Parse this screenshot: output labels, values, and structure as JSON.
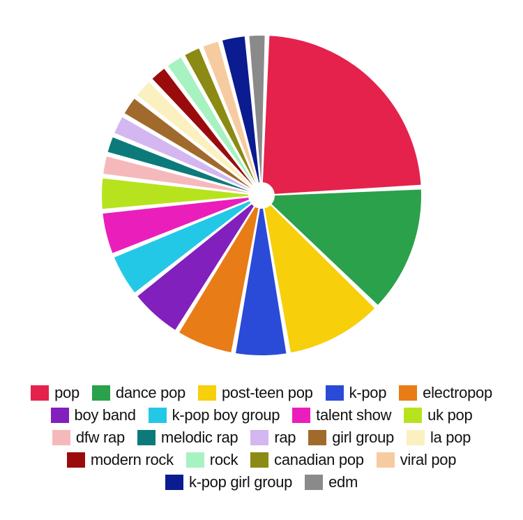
{
  "chart": {
    "type": "pie",
    "background_color": "#ffffff",
    "radius_outer": 230,
    "radius_inner": 18,
    "gap_deg": 1.2,
    "start_angle_deg": -88,
    "slices": [
      {
        "label": "pop",
        "value": 23.5,
        "color": "#e4224b"
      },
      {
        "label": "dance pop",
        "value": 13.0,
        "color": "#2aa14a"
      },
      {
        "label": "post-teen pop",
        "value": 10.0,
        "color": "#f7cf0a"
      },
      {
        "label": "k-pop",
        "value": 5.5,
        "color": "#2a4bd7"
      },
      {
        "label": "electropop",
        "value": 6.0,
        "color": "#e87c17"
      },
      {
        "label": "boy band",
        "value": 5.5,
        "color": "#8120bd"
      },
      {
        "label": "k-pop boy group",
        "value": 4.5,
        "color": "#23c8e6"
      },
      {
        "label": "talent show",
        "value": 4.5,
        "color": "#ea1fbb"
      },
      {
        "label": "uk pop",
        "value": 3.5,
        "color": "#b7e31e"
      },
      {
        "label": "dfw rap",
        "value": 2.2,
        "color": "#f6b9bb"
      },
      {
        "label": "melodic rap",
        "value": 2.0,
        "color": "#0c7a7a"
      },
      {
        "label": "rap",
        "value": 2.2,
        "color": "#d4b6f0"
      },
      {
        "label": "girl group",
        "value": 2.2,
        "color": "#a06a2c"
      },
      {
        "label": "la pop",
        "value": 2.2,
        "color": "#fbf0c0"
      },
      {
        "label": "modern rock",
        "value": 2.0,
        "color": "#9a0c0c"
      },
      {
        "label": "rock",
        "value": 2.0,
        "color": "#a7f2c1"
      },
      {
        "label": "canadian pop",
        "value": 2.0,
        "color": "#8a8a14"
      },
      {
        "label": "viral pop",
        "value": 2.0,
        "color": "#f7cba0"
      },
      {
        "label": "k-pop girl group",
        "value": 2.7,
        "color": "#0a1c8f"
      },
      {
        "label": "edm",
        "value": 2.0,
        "color": "#8a8a8a"
      }
    ]
  },
  "legend": {
    "font_size": 22,
    "swatch_w": 26,
    "swatch_h": 22,
    "text_color": "#111111"
  }
}
